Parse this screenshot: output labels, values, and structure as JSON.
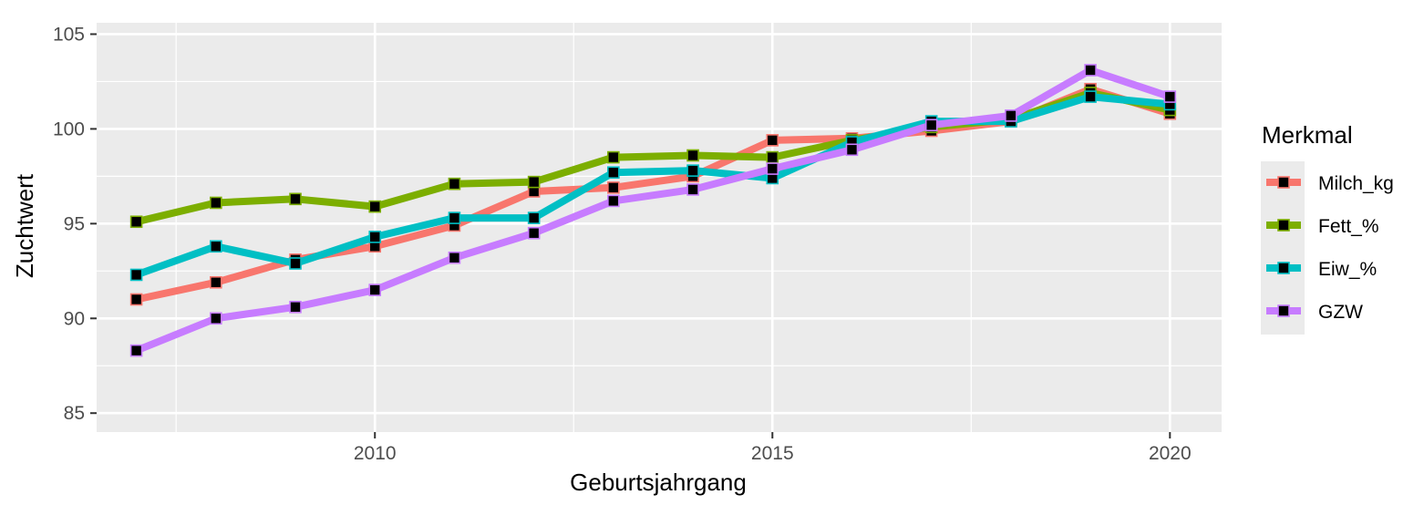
{
  "chart_data": {
    "type": "line",
    "xlabel": "Geburtsjahrgang",
    "ylabel": "Zuchtwert",
    "xlim": [
      2006.5,
      2020.65
    ],
    "ylim": [
      84,
      105.6
    ],
    "x_ticks": [
      2010,
      2015,
      2020
    ],
    "y_ticks": [
      85,
      90,
      95,
      100,
      105
    ],
    "grid": true,
    "legend": {
      "title": "Merkmal",
      "position": "right"
    },
    "x": [
      2007,
      2008,
      2009,
      2010,
      2011,
      2012,
      2013,
      2014,
      2015,
      2016,
      2017,
      2018,
      2019,
      2020
    ],
    "series": [
      {
        "name": "Milch_kg",
        "color": "#F8766D",
        "values": [
          91.0,
          91.9,
          93.1,
          93.8,
          94.9,
          96.7,
          96.9,
          97.5,
          99.4,
          99.5,
          99.9,
          100.4,
          102.1,
          100.8
        ]
      },
      {
        "name": "Fett_%",
        "color": "#7CAE00",
        "values": [
          95.1,
          96.1,
          96.3,
          95.9,
          97.1,
          97.2,
          98.5,
          98.6,
          98.5,
          99.4,
          100.1,
          100.5,
          101.9,
          101.0
        ]
      },
      {
        "name": "Eiw_%",
        "color": "#00BFC4",
        "values": [
          92.3,
          93.8,
          92.9,
          94.3,
          95.3,
          95.3,
          97.7,
          97.8,
          97.4,
          99.3,
          100.4,
          100.4,
          101.7,
          101.3
        ]
      },
      {
        "name": "GZW",
        "color": "#C77CFF",
        "values": [
          88.3,
          90.0,
          90.6,
          91.5,
          93.2,
          94.5,
          96.2,
          96.8,
          97.9,
          98.9,
          100.2,
          100.7,
          103.1,
          101.7
        ]
      }
    ]
  }
}
